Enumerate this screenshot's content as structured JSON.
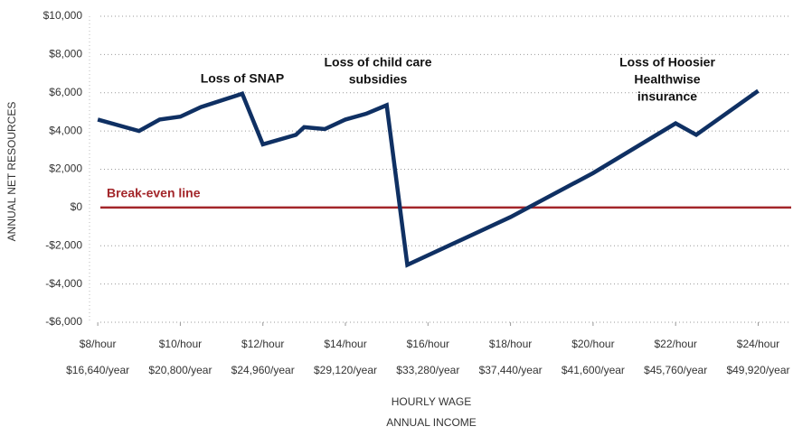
{
  "chart_data": {
    "type": "line",
    "y_label": "ANNUAL NET RESOURCES",
    "x_label": "HOURLY WAGE",
    "x_label2": "ANNUAL INCOME",
    "x": [
      8,
      9,
      9.5,
      10,
      10.5,
      11.5,
      12,
      12.8,
      13,
      13.5,
      14,
      14.5,
      15,
      15.5,
      18,
      20,
      22,
      22.5,
      24
    ],
    "series": [
      {
        "name": "Annual net resources",
        "color": "#0f3063",
        "values": [
          4600,
          4000,
          4600,
          4750,
          5250,
          5950,
          3300,
          3800,
          4200,
          4100,
          4600,
          4900,
          5350,
          -3000,
          -500,
          1800,
          4400,
          3800,
          6100
        ]
      }
    ],
    "xlim": [
      7.8,
      24.8
    ],
    "xticks": [
      {
        "value": 8,
        "label": "$8/hour"
      },
      {
        "value": 10,
        "label": "$10/hour"
      },
      {
        "value": 12,
        "label": "$12/hour"
      },
      {
        "value": 14,
        "label": "$14/hour"
      },
      {
        "value": 16,
        "label": "$16/hour"
      },
      {
        "value": 18,
        "label": "$18/hour"
      },
      {
        "value": 20,
        "label": "$20/hour"
      },
      {
        "value": 22,
        "label": "$22/hour"
      },
      {
        "value": 24,
        "label": "$24/hour"
      }
    ],
    "annual_labels": [
      "$16,640/year",
      "$20,800/year",
      "$24,960/year",
      "$29,120/year",
      "$33,280/year",
      "$37,440/year",
      "$41,600/year",
      "$45,760/year",
      "$49,920/year"
    ],
    "ylim": [
      -6000,
      10000
    ],
    "yticks": [
      {
        "value": 10000,
        "label": "$10,000"
      },
      {
        "value": 8000,
        "label": "$8,000"
      },
      {
        "value": 6000,
        "label": "$6,000"
      },
      {
        "value": 4000,
        "label": "$4,000"
      },
      {
        "value": 2000,
        "label": "$2,000"
      },
      {
        "value": 0,
        "label": "$0"
      },
      {
        "value": -2000,
        "label": "-$2,000"
      },
      {
        "value": -4000,
        "label": "-$4,000"
      },
      {
        "value": -6000,
        "label": "-$6,000"
      }
    ],
    "grid": true,
    "reference_line": {
      "value": 0,
      "label": "Break-even line",
      "color": "#a3262a"
    },
    "annotations": [
      [
        "Loss of SNAP"
      ],
      [
        "Loss of child care",
        "subsidies"
      ],
      [
        "Loss of Hoosier",
        "Healthwise",
        "insurance"
      ]
    ]
  }
}
